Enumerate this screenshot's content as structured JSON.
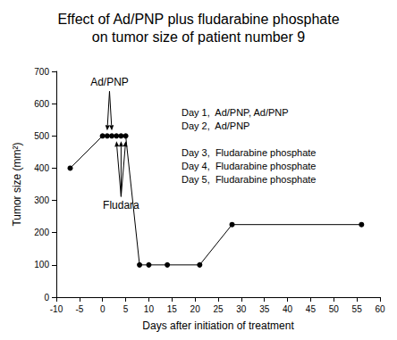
{
  "chart_data": {
    "type": "line",
    "title": [
      "Effect of Ad/PNP plus fludarabine phosphate",
      "on tumor size of patient number 9"
    ],
    "x_label": "Days after initiation of treatment",
    "y_label": "Tumor size (mm²)",
    "x": [
      -7,
      0,
      1,
      2,
      3,
      4,
      5,
      8,
      10,
      14,
      21,
      28,
      56
    ],
    "values": [
      400,
      500,
      500,
      500,
      500,
      500,
      500,
      100,
      100,
      100,
      100,
      225,
      225
    ],
    "color": "#000000",
    "marker": "circle",
    "line_style": "solid",
    "xlim": [
      -10,
      60
    ],
    "xticks": [
      -10,
      -5,
      0,
      5,
      10,
      15,
      20,
      25,
      30,
      35,
      40,
      45,
      50,
      55,
      60
    ],
    "ylim": [
      0,
      700
    ],
    "yticks": [
      0,
      100,
      200,
      300,
      400,
      500,
      600,
      700
    ],
    "grid": false,
    "annotations": [
      {
        "text": "Ad/PNP",
        "x": [
          1,
          2
        ],
        "side": "above"
      },
      {
        "text": "Fludara",
        "x": [
          3,
          4,
          5
        ],
        "side": "below"
      }
    ],
    "notes": [
      [
        "Day 1,  Ad/PNP, Ad/PNP",
        "Day 2,  Ad/PNP"
      ],
      [
        "Day 3,  Fludarabine phosphate",
        "Day 4,  Fludarabine phosphate",
        "Day 5,  Fludarabine phosphate"
      ]
    ]
  }
}
